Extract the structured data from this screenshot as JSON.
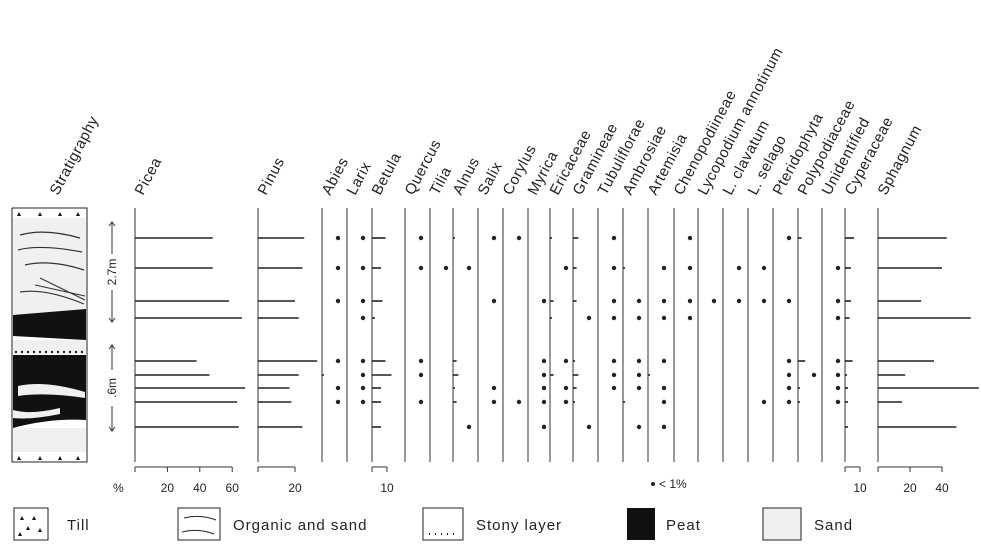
{
  "chart_data": {
    "type": "pollen-diagram",
    "stratigraphy_label": "Stratigraphy",
    "sample_ids": [
      "s1",
      "s2",
      "s3",
      "s4",
      "s5",
      "s6",
      "s7",
      "s8",
      "s9"
    ],
    "depth_annotations": [
      {
        "label": "2.7m",
        "from_sample": 0,
        "to_sample": 3
      },
      {
        "label": ".6m",
        "from_sample": 4,
        "to_sample": 8
      }
    ],
    "taxa": [
      {
        "name": "Picea",
        "values": [
          48,
          48,
          58,
          66,
          38,
          46,
          68,
          63,
          64
        ]
      },
      {
        "name": "Pinus",
        "values": [
          25,
          24,
          20,
          22,
          32,
          22,
          17,
          18,
          24
        ]
      },
      {
        "name": "Abies",
        "values": [
          "<1",
          "<1",
          "<1",
          null,
          "<1",
          1,
          "<1",
          "<1",
          null
        ]
      },
      {
        "name": "Larix",
        "values": [
          "<1",
          "<1",
          "<1",
          "<1",
          "<1",
          "<1",
          "<1",
          "<1",
          null
        ]
      },
      {
        "name": "Betula",
        "values": [
          9,
          6,
          7,
          2,
          9,
          13,
          6,
          6,
          6
        ]
      },
      {
        "name": "Quercus",
        "values": [
          "<1",
          "<1",
          null,
          null,
          "<1",
          "<1",
          null,
          "<1",
          null
        ]
      },
      {
        "name": "Tilia",
        "values": [
          null,
          "<1",
          null,
          null,
          null,
          null,
          null,
          null,
          null
        ]
      },
      {
        "name": "Alnus",
        "values": [
          1,
          "<1",
          null,
          null,
          2,
          3,
          1,
          2,
          "<1"
        ]
      },
      {
        "name": "Salix",
        "values": [
          "<1",
          null,
          "<1",
          null,
          null,
          null,
          "<1",
          "<1",
          null
        ]
      },
      {
        "name": "Corylus",
        "values": [
          "<1",
          null,
          null,
          null,
          null,
          null,
          null,
          "<1",
          null
        ]
      },
      {
        "name": "Myrica",
        "values": [
          null,
          null,
          "<1",
          null,
          "<1",
          "<1",
          "<1",
          "<1",
          "<1"
        ]
      },
      {
        "name": "Ericaceae",
        "values": [
          1,
          "<1",
          2,
          1,
          "<1",
          2,
          "<1",
          "<1",
          null
        ]
      },
      {
        "name": "Gramineae",
        "values": [
          3,
          2,
          2,
          "<1",
          1,
          3,
          2,
          1,
          "<1"
        ]
      },
      {
        "name": "Tubuliflorae",
        "values": [
          "<1",
          "<1",
          "<1",
          "<1",
          "<1",
          "<1",
          "<1",
          null,
          null
        ]
      },
      {
        "name": "Ambrosiae",
        "values": [
          null,
          1,
          "<1",
          "<1",
          "<1",
          "<1",
          "<1",
          1,
          "<1"
        ]
      },
      {
        "name": "Artemisia",
        "values": [
          null,
          "<1",
          "<1",
          "<1",
          "<1",
          1,
          "<1",
          "<1",
          "<1"
        ]
      },
      {
        "name": "Chenopodiineae",
        "values": [
          "<1",
          "<1",
          "<1",
          "<1",
          null,
          null,
          null,
          null,
          null
        ]
      },
      {
        "name": "Lycopodium annotinum",
        "values": [
          null,
          null,
          "<1",
          null,
          null,
          null,
          null,
          null,
          null
        ]
      },
      {
        "name": "L. clavatum",
        "values": [
          null,
          "<1",
          "<1",
          null,
          null,
          null,
          null,
          null,
          null
        ]
      },
      {
        "name": "L. selago",
        "values": [
          null,
          "<1",
          "<1",
          null,
          null,
          null,
          null,
          "<1",
          null
        ]
      },
      {
        "name": "Pteridophyta",
        "values": [
          "<1",
          null,
          "<1",
          null,
          "<1",
          "<1",
          "<1",
          "<1",
          null
        ]
      },
      {
        "name": "Polypodiaceae",
        "values": [
          2,
          null,
          null,
          null,
          4,
          "<1",
          1,
          1,
          null
        ]
      },
      {
        "name": "Unidentified",
        "values": [
          null,
          "<1",
          "<1",
          "<1",
          "<1",
          "<1",
          "<1",
          "<1",
          null
        ]
      },
      {
        "name": "Cyperaceae",
        "values": [
          6,
          4,
          4,
          3,
          5,
          1,
          2,
          2,
          2
        ]
      },
      {
        "name": "Sphagnum",
        "values": [
          43,
          40,
          27,
          58,
          35,
          17,
          63,
          15,
          49
        ]
      }
    ],
    "axis_labels": [
      {
        "taxon": "Picea",
        "unit": "%",
        "ticks": [
          "20",
          "40",
          "60"
        ]
      },
      {
        "taxon": "Pinus",
        "ticks": [
          "20"
        ]
      },
      {
        "taxon": "Betula",
        "ticks": [
          "10"
        ]
      },
      {
        "taxon": "Cyperaceae",
        "ticks": [
          "10"
        ]
      },
      {
        "taxon": "Sphagnum",
        "ticks": [
          "20",
          "40"
        ]
      }
    ],
    "trace_note": "< 1%",
    "legend": [
      {
        "key": "till",
        "label": "Till"
      },
      {
        "key": "organic",
        "label": "Organic and sand"
      },
      {
        "key": "stony",
        "label": "Stony layer"
      },
      {
        "key": "peat",
        "label": "Peat"
      },
      {
        "key": "sand",
        "label": "Sand"
      }
    ]
  }
}
